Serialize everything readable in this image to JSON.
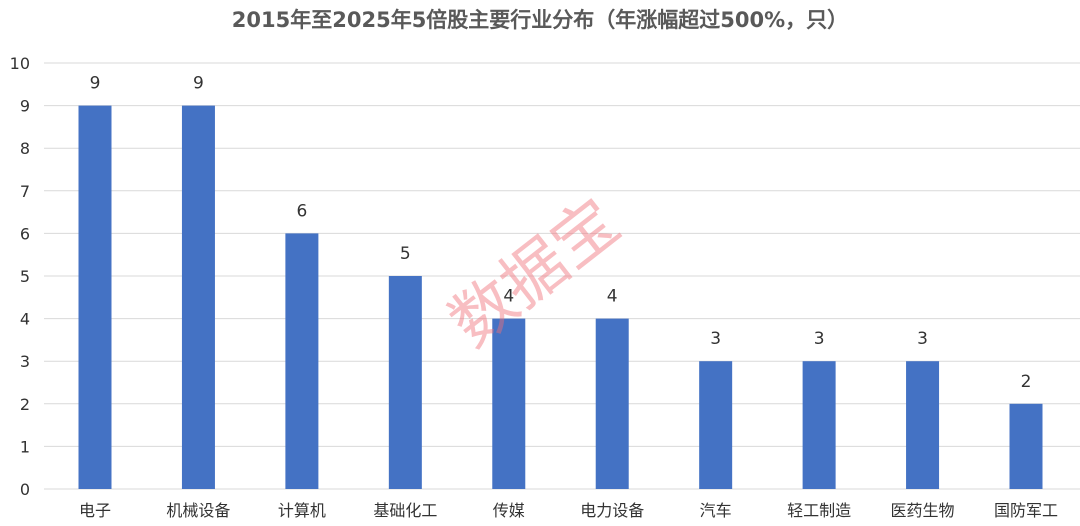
{
  "chart_data": {
    "type": "bar",
    "title": "2015年至2025年5倍股主要行业分布（年涨幅超过500%，只）",
    "xlabel": "",
    "ylabel": "",
    "categories": [
      "电子",
      "机械设备",
      "计算机",
      "基础化工",
      "传媒",
      "电力设备",
      "汽车",
      "轻工制造",
      "医药生物",
      "国防军工"
    ],
    "values": [
      9,
      9,
      6,
      5,
      4,
      4,
      3,
      3,
      3,
      2
    ],
    "ylim": [
      0,
      10
    ],
    "yticks": [
      0,
      1,
      2,
      3,
      4,
      5,
      6,
      7,
      8,
      9,
      10
    ],
    "grid": true,
    "data_labels": true,
    "bar_color": "#4472C4"
  },
  "watermark": {
    "text": "数据宝",
    "color": "#F06E78"
  }
}
